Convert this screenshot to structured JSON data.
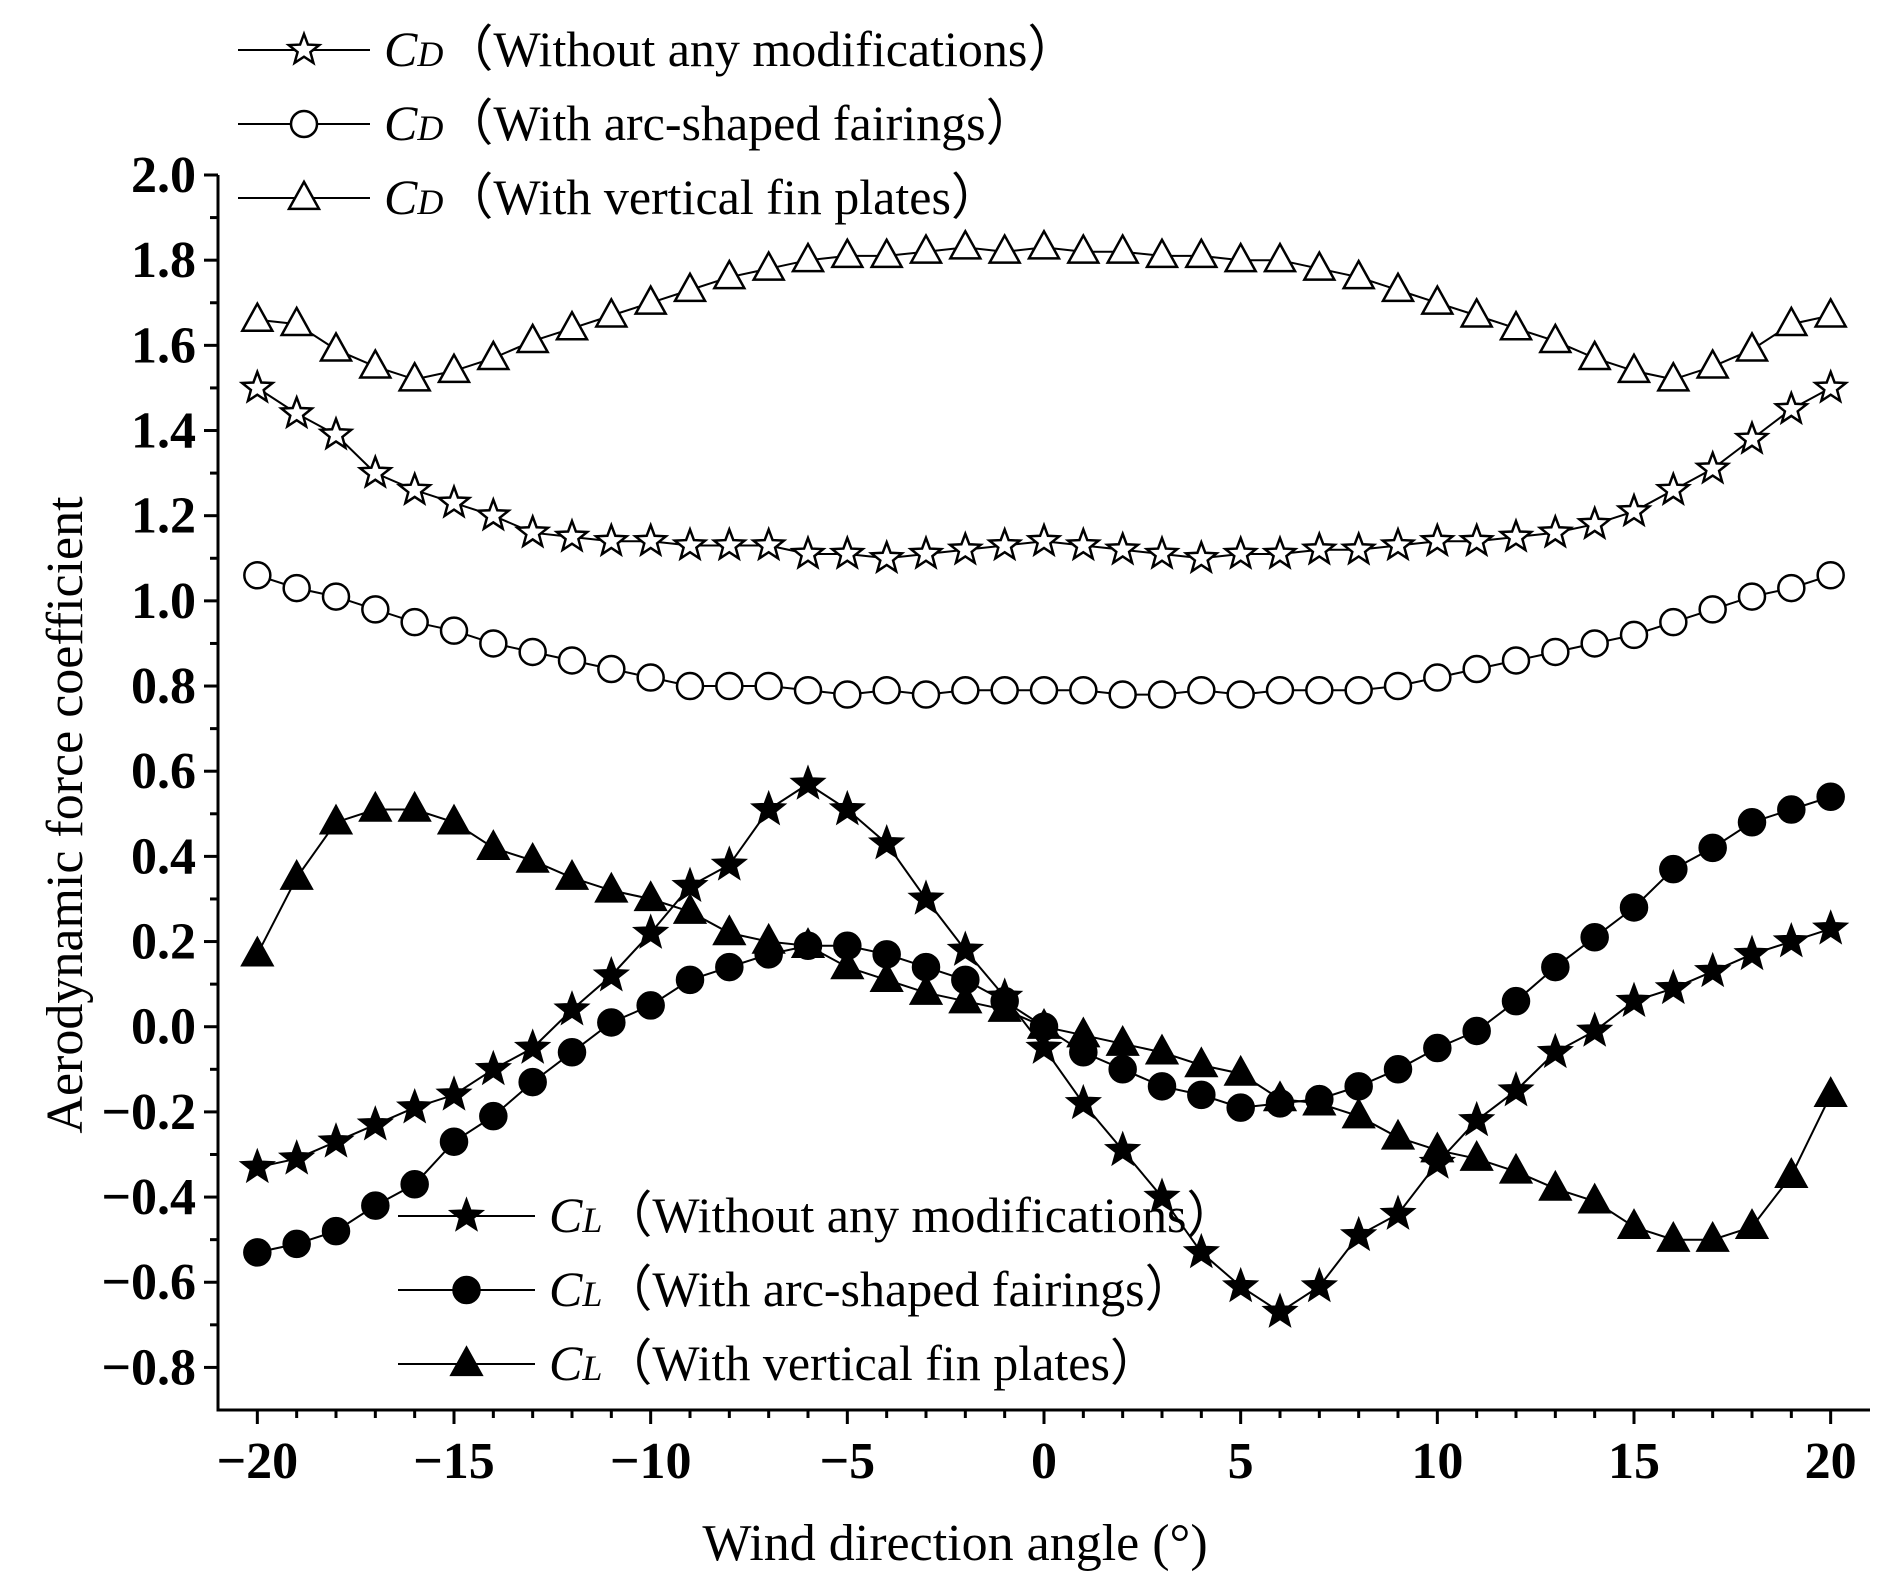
{
  "chart_data": {
    "type": "line",
    "title": "",
    "xlabel": "Wind direction angle (°)",
    "ylabel": "Aerodynamic force coefficient",
    "xlim": [
      -21,
      21
    ],
    "ylim": [
      -0.9,
      2.0
    ],
    "xticks": [
      -20,
      -15,
      -10,
      -5,
      0,
      5,
      10,
      15,
      20
    ],
    "xtick_labels": [
      "−20",
      "−15",
      "−10",
      "−5",
      "0",
      "5",
      "10",
      "15",
      "20"
    ],
    "yticks": [
      -0.8,
      -0.6,
      -0.4,
      -0.2,
      0.0,
      0.2,
      0.4,
      0.6,
      0.8,
      1.0,
      1.2,
      1.4,
      1.6,
      1.8,
      2.0
    ],
    "ytick_labels": [
      "−0.8",
      "−0.6",
      "−0.4",
      "−0.2",
      "0.0",
      "0.2",
      "0.4",
      "0.6",
      "0.8",
      "1.0",
      "1.2",
      "1.4",
      "1.6",
      "1.8",
      "2.0"
    ],
    "grid": false,
    "x": [
      -20,
      -19,
      -18,
      -17,
      -16,
      -15,
      -14,
      -13,
      -12,
      -11,
      -10,
      -9,
      -8,
      -7,
      -6,
      -5,
      -4,
      -3,
      -2,
      -1,
      0,
      1,
      2,
      3,
      4,
      5,
      6,
      7,
      8,
      9,
      10,
      11,
      12,
      13,
      14,
      15,
      16,
      17,
      18,
      19,
      20
    ],
    "series": [
      {
        "id": "cd_none",
        "name": "CD（Without any modifications）",
        "symbol": "C",
        "subscript": "D",
        "desc": "（Without any modifications）",
        "marker": "star",
        "filled": false,
        "legend": "top",
        "values": [
          1.5,
          1.44,
          1.39,
          1.3,
          1.26,
          1.23,
          1.2,
          1.16,
          1.15,
          1.14,
          1.14,
          1.13,
          1.13,
          1.13,
          1.11,
          1.11,
          1.1,
          1.11,
          1.12,
          1.13,
          1.14,
          1.13,
          1.12,
          1.11,
          1.1,
          1.11,
          1.11,
          1.12,
          1.12,
          1.13,
          1.14,
          1.14,
          1.15,
          1.16,
          1.18,
          1.21,
          1.26,
          1.31,
          1.38,
          1.45,
          1.5
        ]
      },
      {
        "id": "cd_arc",
        "name": "CD（With arc-shaped fairings）",
        "symbol": "C",
        "subscript": "D",
        "desc": "（With arc-shaped fairings）",
        "marker": "circle",
        "filled": false,
        "legend": "top",
        "values": [
          1.06,
          1.03,
          1.01,
          0.98,
          0.95,
          0.93,
          0.9,
          0.88,
          0.86,
          0.84,
          0.82,
          0.8,
          0.8,
          0.8,
          0.79,
          0.78,
          0.79,
          0.78,
          0.79,
          0.79,
          0.79,
          0.79,
          0.78,
          0.78,
          0.79,
          0.78,
          0.79,
          0.79,
          0.79,
          0.8,
          0.82,
          0.84,
          0.86,
          0.88,
          0.9,
          0.92,
          0.95,
          0.98,
          1.01,
          1.03,
          1.06
        ]
      },
      {
        "id": "cd_fin",
        "name": "CD（With vertical fin plates）",
        "symbol": "C",
        "subscript": "D",
        "desc": "（With vertical fin plates）",
        "marker": "triangle",
        "filled": false,
        "legend": "top",
        "values": [
          1.66,
          1.65,
          1.59,
          1.55,
          1.52,
          1.54,
          1.57,
          1.61,
          1.64,
          1.67,
          1.7,
          1.73,
          1.76,
          1.78,
          1.8,
          1.81,
          1.81,
          1.82,
          1.83,
          1.82,
          1.83,
          1.82,
          1.82,
          1.81,
          1.81,
          1.8,
          1.8,
          1.78,
          1.76,
          1.73,
          1.7,
          1.67,
          1.64,
          1.61,
          1.57,
          1.54,
          1.52,
          1.55,
          1.59,
          1.65,
          1.67
        ]
      },
      {
        "id": "cl_none",
        "name": "CL（Without any modifications）",
        "symbol": "C",
        "subscript": "L",
        "desc": "（Without any modifications）",
        "marker": "star",
        "filled": true,
        "legend": "bottom",
        "values": [
          -0.33,
          -0.31,
          -0.27,
          -0.23,
          -0.19,
          -0.16,
          -0.1,
          -0.05,
          0.04,
          0.12,
          0.22,
          0.33,
          0.38,
          0.51,
          0.57,
          0.51,
          0.43,
          0.3,
          0.18,
          0.07,
          -0.05,
          -0.18,
          -0.29,
          -0.4,
          -0.53,
          -0.61,
          -0.67,
          -0.61,
          -0.49,
          -0.44,
          -0.32,
          -0.22,
          -0.15,
          -0.06,
          -0.01,
          0.06,
          0.09,
          0.13,
          0.17,
          0.2,
          0.23
        ]
      },
      {
        "id": "cl_arc",
        "name": "CL（With arc-shaped fairings）",
        "symbol": "C",
        "subscript": "L",
        "desc": "（With arc-shaped fairings）",
        "marker": "circle",
        "filled": true,
        "legend": "bottom",
        "values": [
          -0.53,
          -0.51,
          -0.48,
          -0.42,
          -0.37,
          -0.27,
          -0.21,
          -0.13,
          -0.06,
          0.01,
          0.05,
          0.11,
          0.14,
          0.17,
          0.19,
          0.19,
          0.17,
          0.14,
          0.11,
          0.06,
          0.0,
          -0.06,
          -0.1,
          -0.14,
          -0.16,
          -0.19,
          -0.18,
          -0.17,
          -0.14,
          -0.1,
          -0.05,
          -0.01,
          0.06,
          0.14,
          0.21,
          0.28,
          0.37,
          0.42,
          0.48,
          0.51,
          0.54
        ]
      },
      {
        "id": "cl_fin",
        "name": "CL（With vertical fin plates）",
        "symbol": "C",
        "subscript": "L",
        "desc": "（With vertical fin plates）",
        "marker": "triangle",
        "filled": true,
        "legend": "bottom",
        "values": [
          0.17,
          0.35,
          0.48,
          0.51,
          0.51,
          0.48,
          0.42,
          0.39,
          0.35,
          0.32,
          0.3,
          0.27,
          0.22,
          0.2,
          0.19,
          0.14,
          0.11,
          0.08,
          0.06,
          0.04,
          0.0,
          -0.02,
          -0.04,
          -0.06,
          -0.09,
          -0.11,
          -0.17,
          -0.18,
          -0.21,
          -0.26,
          -0.29,
          -0.31,
          -0.34,
          -0.38,
          -0.41,
          -0.47,
          -0.5,
          -0.5,
          -0.47,
          -0.35,
          -0.16
        ]
      }
    ]
  }
}
